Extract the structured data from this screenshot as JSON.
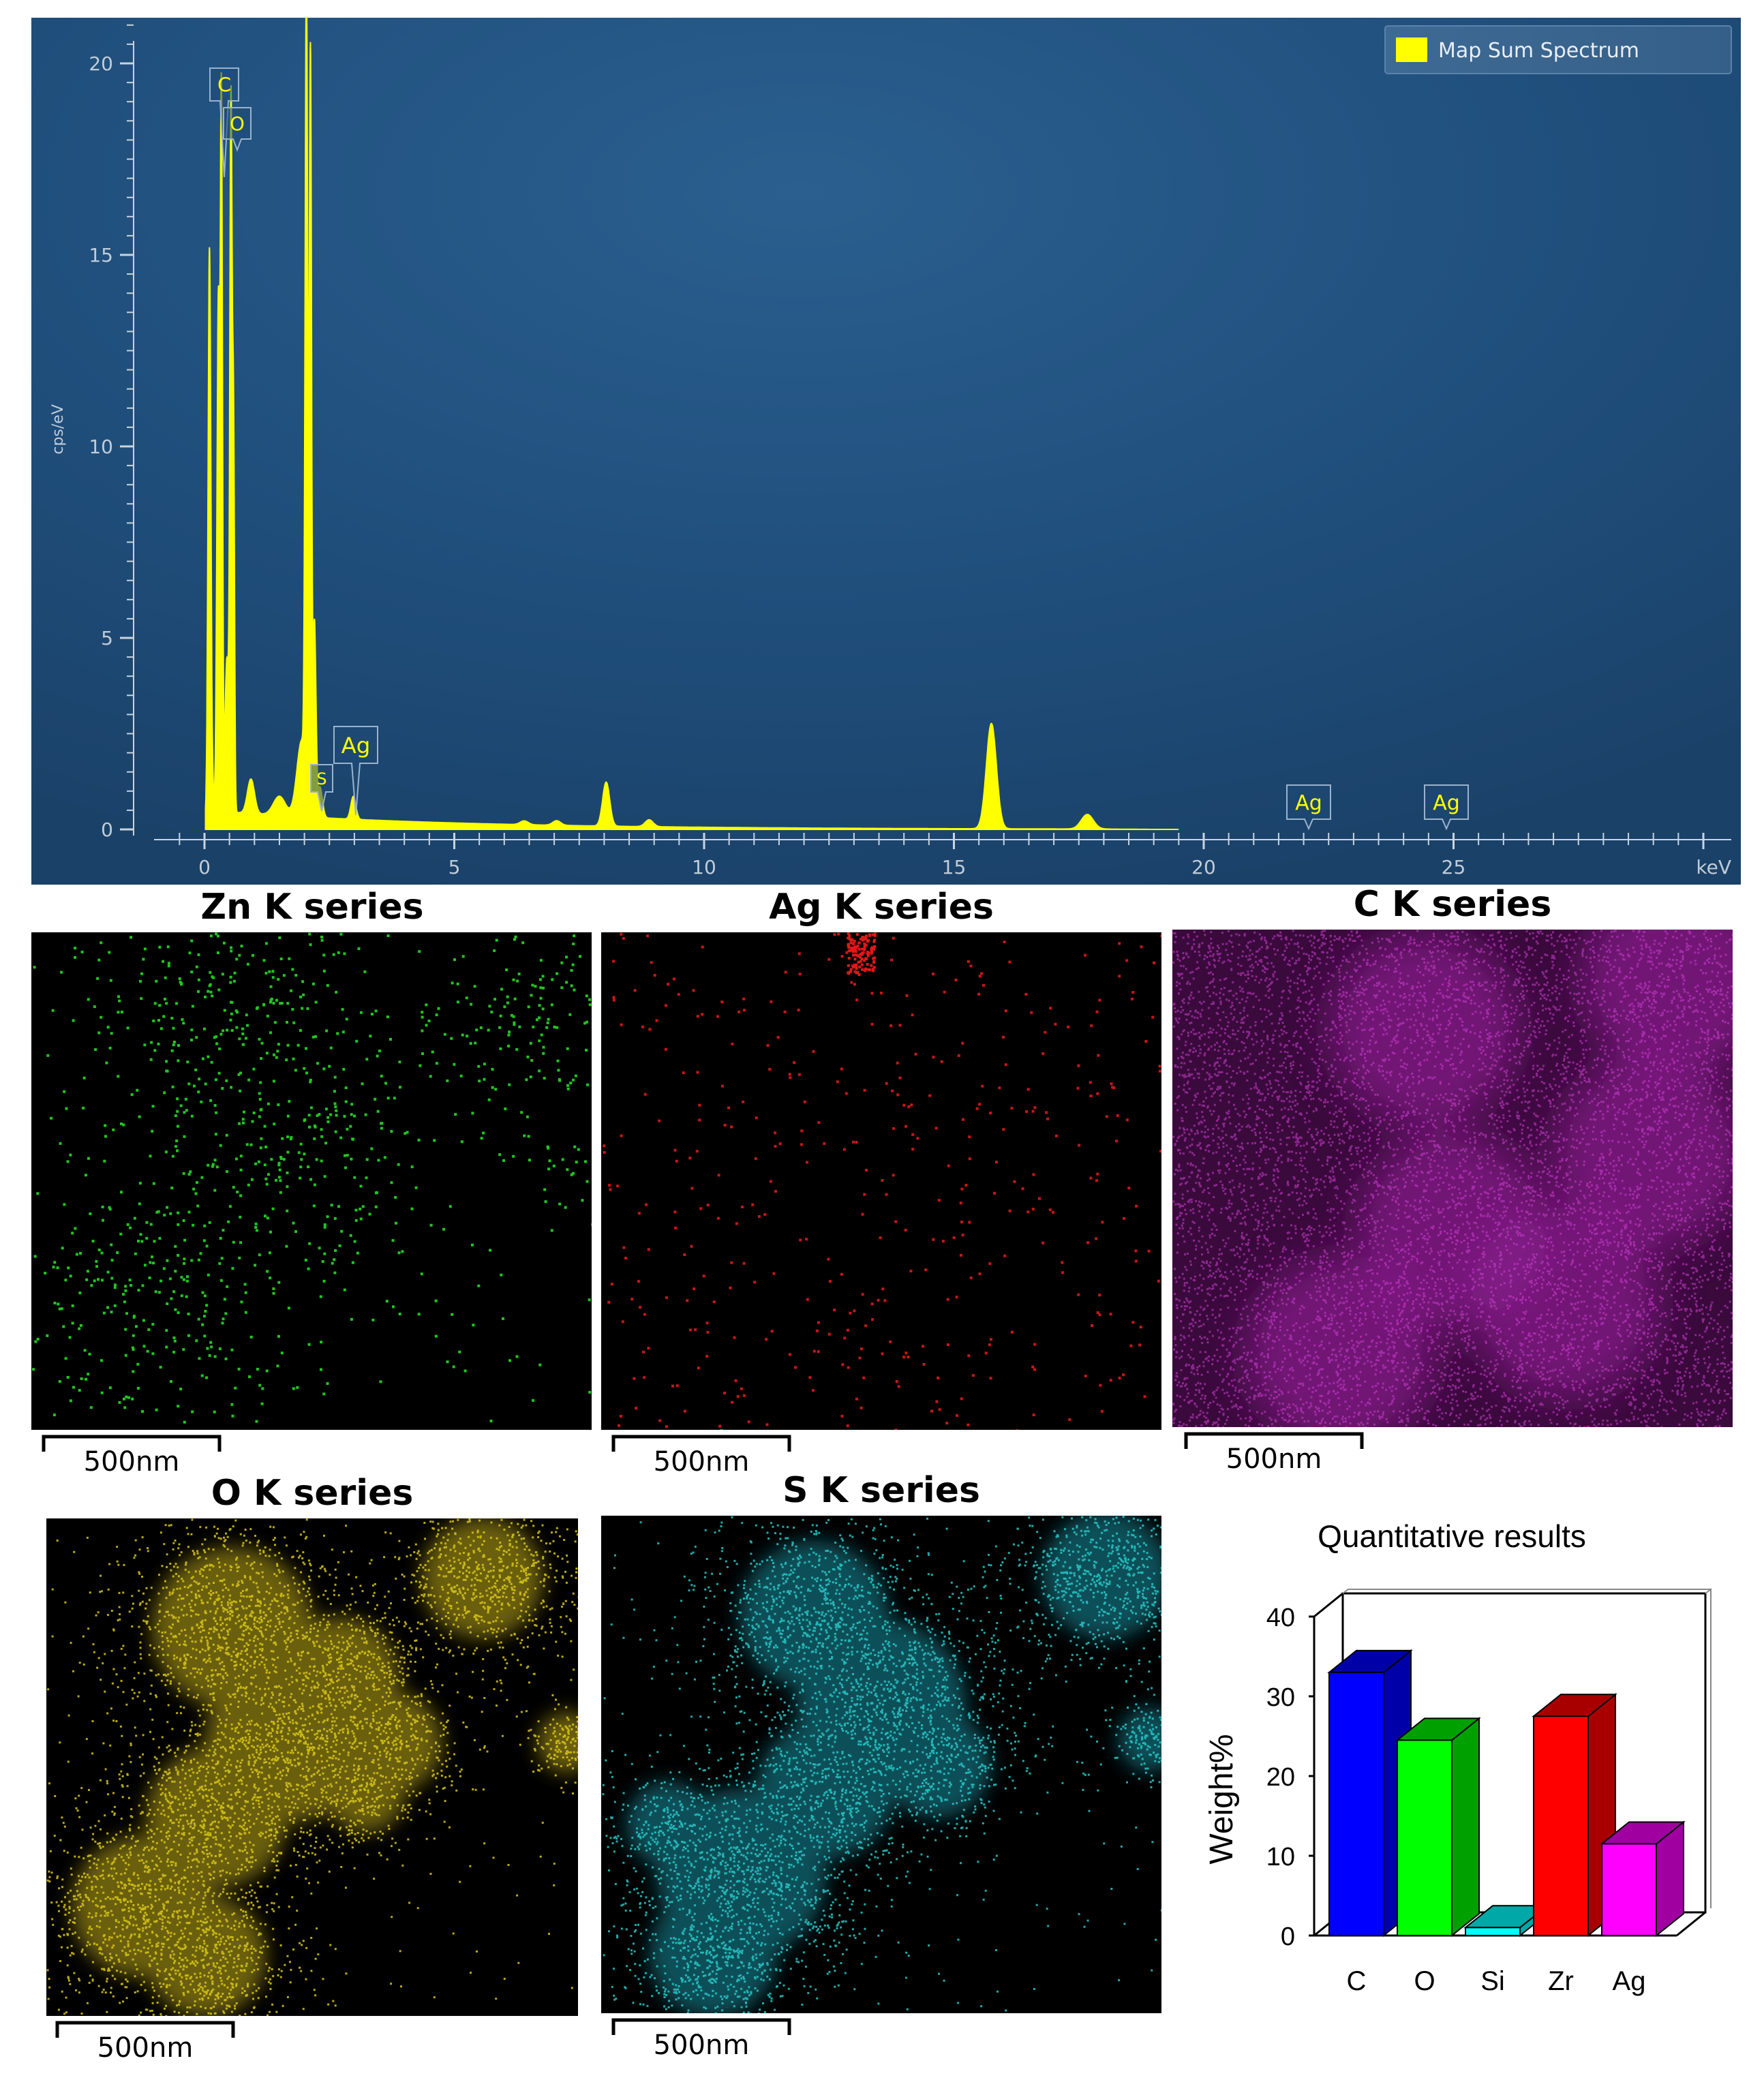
{
  "chart_data": [
    {
      "type": "line",
      "title": "",
      "xlabel": "keV",
      "ylabel": "cps/eV",
      "xlim": [
        0,
        30
      ],
      "ylim": [
        0,
        21
      ],
      "xticks": [
        0,
        5,
        10,
        15,
        20,
        25
      ],
      "yticks": [
        0,
        5,
        10,
        15,
        20
      ],
      "legend": {
        "label": "Map Sum Spectrum",
        "color": "#ffff00",
        "position": "top-right"
      },
      "series": [
        {
          "name": "Map Sum Spectrum",
          "peaks": [
            {
              "center": 0.1,
              "height": 3.5,
              "width": 0.04
            },
            {
              "center": 0.1,
              "height": 11.2,
              "width": 0.025
            },
            {
              "center": 0.28,
              "height": 13.5,
              "width": 0.03
            },
            {
              "center": 0.34,
              "height": 17.2,
              "width": 0.02
            },
            {
              "center": 0.45,
              "height": 4.0,
              "width": 0.04
            },
            {
              "center": 0.53,
              "height": 18.0,
              "width": 0.022
            },
            {
              "center": 0.58,
              "height": 10.0,
              "width": 0.02
            },
            {
              "center": 0.93,
              "height": 0.9,
              "width": 0.07
            },
            {
              "center": 1.5,
              "height": 0.5,
              "width": 0.12
            },
            {
              "center": 1.95,
              "height": 2.0,
              "width": 0.1
            },
            {
              "center": 2.04,
              "height": 21.0,
              "width": 0.025
            },
            {
              "center": 2.12,
              "height": 19.5,
              "width": 0.022
            },
            {
              "center": 2.2,
              "height": 5.0,
              "width": 0.03
            },
            {
              "center": 2.31,
              "height": 0.8,
              "width": 0.05
            },
            {
              "center": 2.98,
              "height": 0.6,
              "width": 0.05
            },
            {
              "center": 6.4,
              "height": 0.1,
              "width": 0.08
            },
            {
              "center": 7.05,
              "height": 0.12,
              "width": 0.08
            },
            {
              "center": 8.04,
              "height": 1.15,
              "width": 0.07
            },
            {
              "center": 8.9,
              "height": 0.18,
              "width": 0.08
            },
            {
              "center": 15.75,
              "height": 2.75,
              "width": 0.1
            },
            {
              "center": 17.67,
              "height": 0.38,
              "width": 0.12
            }
          ],
          "baseline": "bremsstrahlung continuum ~0.5 cps/eV decaying to 0 by 18 keV"
        }
      ],
      "annotations": [
        {
          "label": "C",
          "energy": 0.28
        },
        {
          "label": "O",
          "energy": 0.52
        },
        {
          "label": "S",
          "energy": 2.31
        },
        {
          "label": "Ag",
          "energy": 2.98
        },
        {
          "label": "Ag",
          "energy": 22.16
        },
        {
          "label": "Ag",
          "energy": 24.94
        }
      ]
    },
    {
      "type": "bar",
      "title": "Quantitative results",
      "xlabel": "",
      "ylabel": "Weight%",
      "ylim": [
        0,
        40
      ],
      "yticks": [
        0,
        10,
        20,
        30,
        40
      ],
      "categories": [
        "C",
        "O",
        "Si",
        "Zr",
        "Ag"
      ],
      "values": [
        33,
        24.5,
        1,
        27.5,
        11.5
      ],
      "colors": [
        "#0000ff",
        "#00ff00",
        "#00ffff",
        "#ff0000",
        "#ff00ff"
      ],
      "side_colors": [
        "#0000a8",
        "#00a000",
        "#00a8a8",
        "#a80000",
        "#a000a0"
      ]
    }
  ],
  "maps": [
    {
      "title": "Zn K series",
      "color": "#22dd22",
      "scale_label": "500nm",
      "pattern": "sparse-dots"
    },
    {
      "title": "Ag K series",
      "color": "#e01818",
      "scale_label": "500nm",
      "pattern": "very-sparse-dots"
    },
    {
      "title": "C K series",
      "color": "#c020c0",
      "scale_label": "500nm",
      "pattern": "dense-noise"
    },
    {
      "title": "O K series",
      "color": "#d8c818",
      "scale_label": "500nm",
      "pattern": "blobs"
    },
    {
      "title": "S K series",
      "color": "#28c8c8",
      "scale_label": "500nm",
      "pattern": "blobs-speckle"
    }
  ]
}
